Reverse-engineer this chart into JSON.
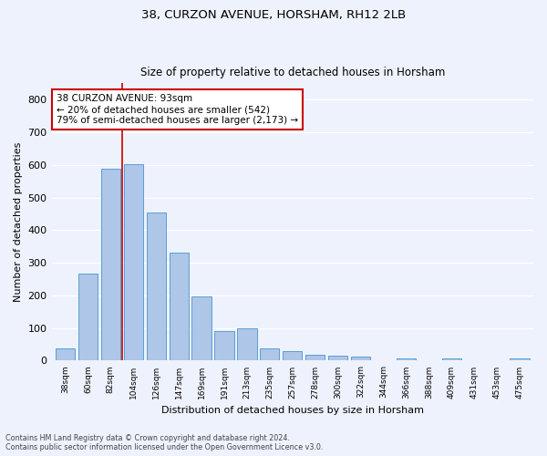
{
  "title1": "38, CURZON AVENUE, HORSHAM, RH12 2LB",
  "title2": "Size of property relative to detached houses in Horsham",
  "xlabel": "Distribution of detached houses by size in Horsham",
  "ylabel": "Number of detached properties",
  "categories": [
    "38sqm",
    "60sqm",
    "82sqm",
    "104sqm",
    "126sqm",
    "147sqm",
    "169sqm",
    "191sqm",
    "213sqm",
    "235sqm",
    "257sqm",
    "278sqm",
    "300sqm",
    "322sqm",
    "344sqm",
    "366sqm",
    "388sqm",
    "409sqm",
    "431sqm",
    "453sqm",
    "475sqm"
  ],
  "values": [
    38,
    267,
    588,
    603,
    453,
    330,
    197,
    90,
    100,
    38,
    30,
    17,
    15,
    11,
    0,
    8,
    0,
    6,
    0,
    0,
    7
  ],
  "bar_color": "#aec6e8",
  "bar_edge_color": "#5a9fd4",
  "vline_color": "#cc0000",
  "annotation_text": "38 CURZON AVENUE: 93sqm\n← 20% of detached houses are smaller (542)\n79% of semi-detached houses are larger (2,173) →",
  "annotation_box_color": "#ffffff",
  "annotation_box_edge": "#cc0000",
  "background_color": "#eef2fc",
  "grid_color": "#ffffff",
  "footer_text": "Contains HM Land Registry data © Crown copyright and database right 2024.\nContains public sector information licensed under the Open Government Licence v3.0.",
  "ylim": [
    0,
    850
  ],
  "yticks": [
    0,
    100,
    200,
    300,
    400,
    500,
    600,
    700,
    800
  ]
}
